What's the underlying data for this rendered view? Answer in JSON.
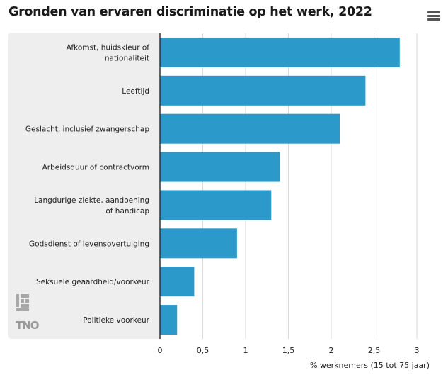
{
  "menu_icon": "hamburger-menu-icon",
  "logo": {
    "text": "TNO",
    "icon": "tno-logo-icon",
    "color": "#9a9a9a"
  },
  "colors": {
    "bar": "#2b9acb",
    "panel": "#eeeeee",
    "grid": "#d9d9d9",
    "axis": "#333333"
  },
  "chart_data": {
    "type": "bar",
    "orientation": "horizontal",
    "title": "Gronden van ervaren discriminatie op het werk, 2022",
    "xlabel": "% werknemers (15 tot 75 jaar)",
    "ylabel": "",
    "xlim": [
      0,
      3
    ],
    "xticks": [
      0,
      0.5,
      1,
      1.5,
      2,
      2.5,
      3
    ],
    "xtick_labels": [
      "0",
      "0,5",
      "1",
      "1,5",
      "2",
      "2,5",
      "3"
    ],
    "grid": true,
    "categories": [
      [
        "Afkomst, huidskleur of",
        "nationaliteit"
      ],
      [
        "Leeftijd"
      ],
      [
        "Geslacht, inclusief zwangerschap"
      ],
      [
        "Arbeidsduur of contractvorm"
      ],
      [
        "Langdurige ziekte, aandoening",
        "of handicap"
      ],
      [
        "Godsdienst of levensovertuiging"
      ],
      [
        "Seksuele geaardheid/voorkeur"
      ],
      [
        "Politieke voorkeur"
      ]
    ],
    "values": [
      2.8,
      2.4,
      2.1,
      1.4,
      1.3,
      0.9,
      0.4,
      0.2
    ]
  }
}
